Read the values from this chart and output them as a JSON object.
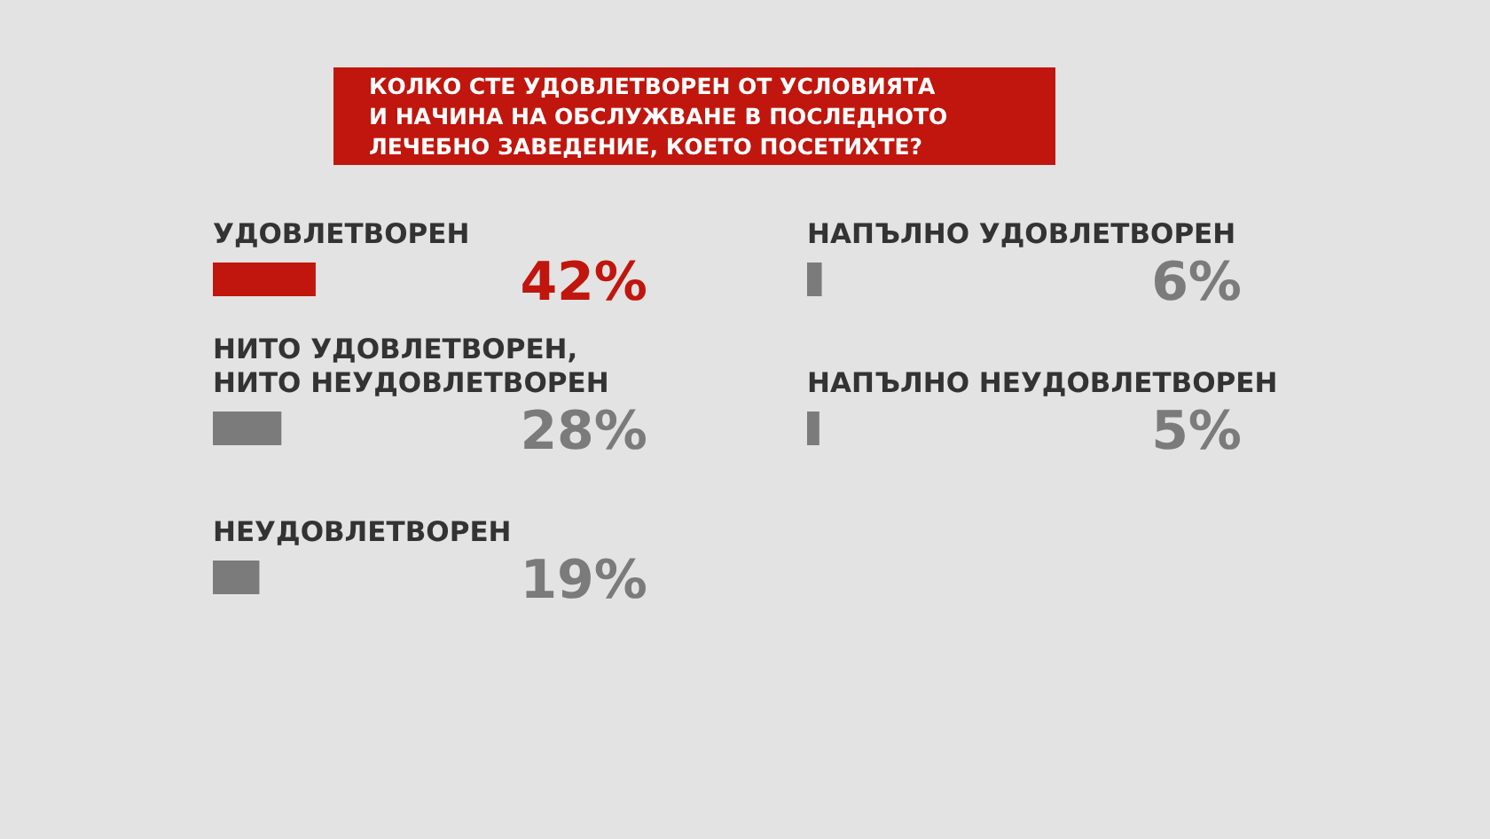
{
  "chart_data": [
    {
      "type": "bar",
      "orientation": "horizontal",
      "title": "КОЛКО СТЕ УДОВЛЕТВОРЕН ОТ УСЛОВИЯТА\nИ НАЧИНА НА ОБСЛУЖВАНЕ В ПОСЛЕДНОТО\nЛЕЧЕБНО ЗАВЕДЕНИЕ, КОЕТО ПОСЕТИХТЕ?",
      "categories": [
        "УДОВЛЕТВОРЕН",
        "НИТО УДОВЛЕТВОРЕН,\nНИТО НЕУДОВЛЕТВОРЕН",
        "НЕУДОВЛЕТВОРЕН"
      ],
      "values": [
        42,
        28,
        19
      ],
      "colors": [
        "#c0160d",
        "#7b7b7b",
        "#7b7b7b"
      ],
      "value_labels": [
        "42%",
        "28%",
        "19%"
      ]
    },
    {
      "type": "bar",
      "orientation": "horizontal",
      "categories": [
        "НАПЪЛНО УДОВЛЕТВОРЕН",
        "НАПЪЛНО НЕУДОВЛЕТВОРЕН"
      ],
      "values": [
        6,
        5
      ],
      "colors": [
        "#7b7b7b",
        "#7b7b7b"
      ],
      "value_labels": [
        "6%",
        "5%"
      ]
    }
  ]
}
